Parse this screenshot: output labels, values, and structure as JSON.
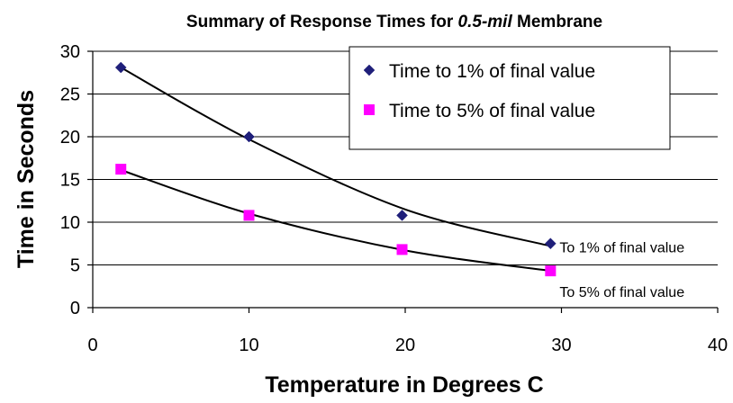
{
  "chart_data": {
    "type": "scatter",
    "title_prefix": "Summary of Response Times for ",
    "title_emphasis": "0.5-mil",
    "title_suffix": " Membrane",
    "xlabel": "Temperature in Degrees C",
    "ylabel": "Time in Seconds",
    "xlim": [
      0,
      40
    ],
    "ylim": [
      0,
      30
    ],
    "x_ticks": [
      0,
      10,
      20,
      30,
      40
    ],
    "y_ticks": [
      0,
      5,
      10,
      15,
      20,
      25,
      30
    ],
    "grid": "horizontal",
    "legend_position": "top-right",
    "series": [
      {
        "name": "Time to 1% of final value",
        "marker": "diamond",
        "color": "#1f1f7a",
        "x": [
          1.8,
          10,
          19.8,
          29.3
        ],
        "y": [
          28.1,
          20.0,
          10.8,
          7.5
        ],
        "trendline": [
          [
            1.8,
            28.1
          ],
          [
            10,
            19.7
          ],
          [
            20,
            11.5
          ],
          [
            29.3,
            7.2
          ]
        ],
        "annotation": "To 1% of final value"
      },
      {
        "name": "Time to 5% of final value",
        "marker": "square",
        "color": "#ff00ff",
        "x": [
          1.8,
          10,
          19.8,
          29.3
        ],
        "y": [
          16.2,
          10.8,
          6.8,
          4.3
        ],
        "trendline": [
          [
            1.8,
            16.1
          ],
          [
            10,
            11.0
          ],
          [
            20,
            6.7
          ],
          [
            29.3,
            4.3
          ]
        ],
        "annotation": "To 5% of final value"
      }
    ]
  }
}
